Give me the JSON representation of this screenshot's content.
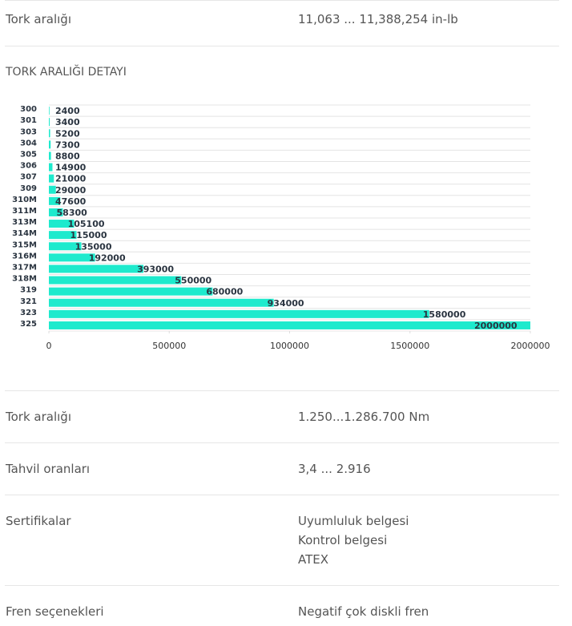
{
  "header_row": {
    "label": "Tork aralığı",
    "value": "11,063 ... 11,388,254 in-lb"
  },
  "section_title": "TORK ARALIĞI DETAYI",
  "chart_data": {
    "type": "bar",
    "orientation": "horizontal",
    "categories": [
      "300",
      "301",
      "303",
      "304",
      "305",
      "306",
      "307",
      "309",
      "310M",
      "311M",
      "313M",
      "314M",
      "315M",
      "316M",
      "317M",
      "318M",
      "319",
      "321",
      "323",
      "325"
    ],
    "values": [
      2400,
      3400,
      5200,
      7300,
      8800,
      14900,
      21000,
      29000,
      47600,
      58300,
      105100,
      115000,
      135000,
      192000,
      393000,
      550000,
      680000,
      934000,
      1580000,
      2000000
    ],
    "color": "#1eeacd",
    "xlim": [
      0,
      2000000
    ],
    "xticks": [
      0,
      500000,
      1000000,
      1500000,
      2000000
    ],
    "grid": true
  },
  "rows": [
    {
      "label": "Tork aralığı",
      "values": [
        "1.250...1.286.700 Nm"
      ]
    },
    {
      "label": "Tahvil oranları",
      "values": [
        "3,4 ... 2.916"
      ]
    },
    {
      "label": "Sertifikalar",
      "values": [
        "Uyumluluk belgesi",
        "Kontrol belgesi",
        "ATEX"
      ]
    },
    {
      "label": "Fren seçenekleri",
      "values": [
        "Negatif çok diskli fren"
      ]
    }
  ]
}
